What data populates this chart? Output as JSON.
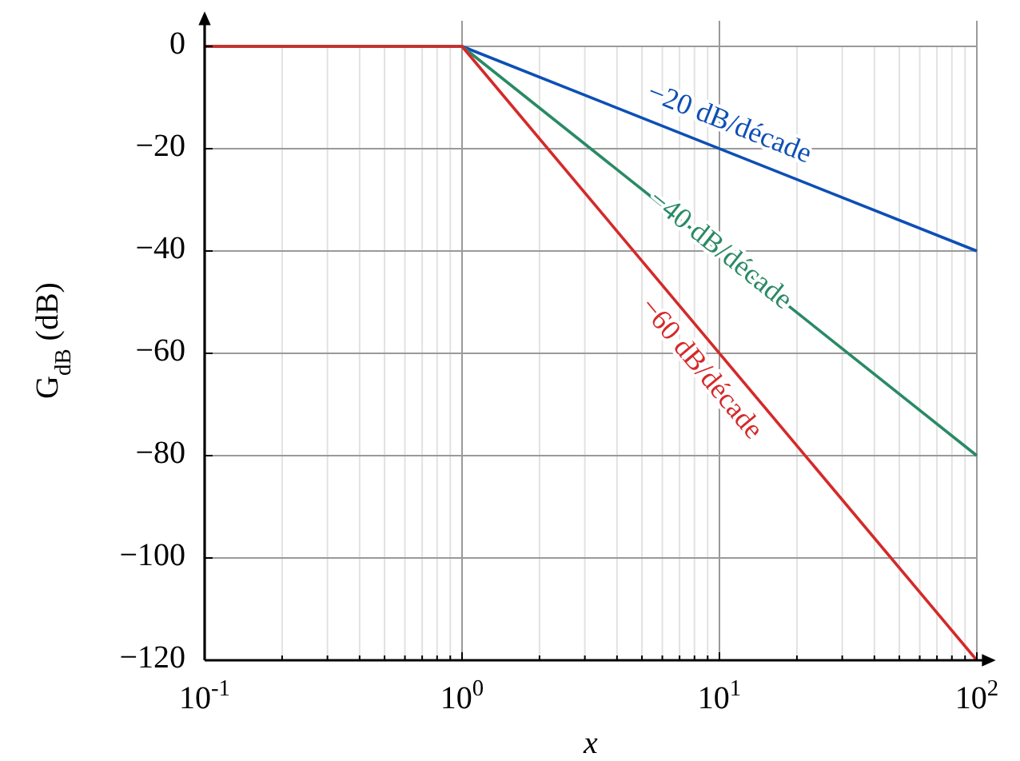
{
  "chart_data": {
    "type": "line",
    "xlabel": "x",
    "ylabel": "G$_{dB}$ (dB)",
    "log": "x",
    "grid": true,
    "xlim": [
      0.1,
      100
    ],
    "xticks": [
      {
        "value": 0.1,
        "label": "10$^{-1}$"
      },
      {
        "value": 1,
        "label": "10$^{0}$"
      },
      {
        "value": 10,
        "label": "10$^{1}$"
      },
      {
        "value": 100,
        "label": "10$^{2}$"
      }
    ],
    "ylim": [
      -120,
      5
    ],
    "yticks": [
      -120,
      -100,
      -80,
      -60,
      -40,
      -20,
      0
    ],
    "series": [
      {
        "color": "#0d4fb5",
        "x": [
          0.1,
          1,
          100
        ],
        "values": [
          0,
          0,
          -40
        ]
      },
      {
        "color": "#2a8a66",
        "x": [
          0.1,
          1,
          100
        ],
        "values": [
          0,
          0,
          -80
        ]
      },
      {
        "color": "#d42a2a",
        "x": [
          0.1,
          1,
          100
        ],
        "values": [
          0,
          0,
          -120
        ]
      }
    ],
    "annotations": [
      "−20 dB/décade",
      "−40 dB/décade",
      "−60 dB/décade"
    ]
  }
}
